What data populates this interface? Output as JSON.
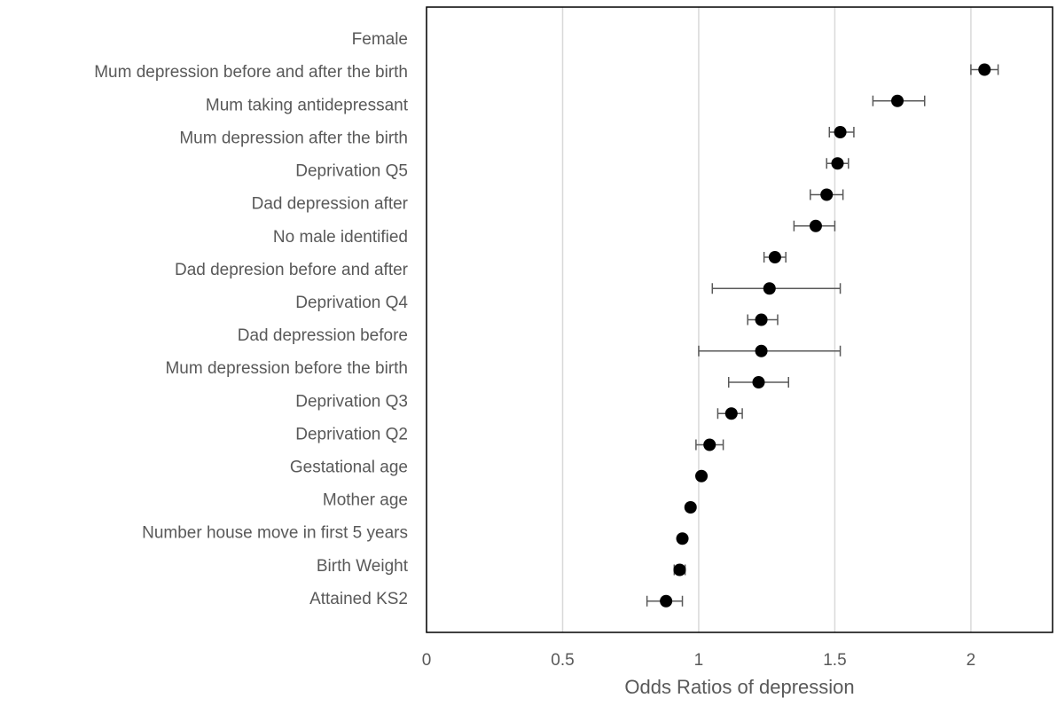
{
  "chart_data": {
    "type": "forest",
    "x_label": "Odds Ratios of depression",
    "categories": [
      "Female",
      "Mum depression before and after the birth",
      "Mum taking antidepressant",
      "Mum depression after the birth",
      "Deprivation Q5",
      "Dad depression after",
      "No male identified",
      "Dad depresion before and after",
      "Deprivation Q4",
      "Dad depression before",
      "Mum depression before the birth",
      "Deprivation Q3",
      "Deprivation Q2",
      "Gestational age",
      "Mother age",
      "Number house move in first 5 years",
      "Birth Weight",
      "Attained KS2"
    ],
    "values": [
      2.05,
      1.73,
      1.52,
      1.51,
      1.47,
      1.43,
      1.28,
      1.26,
      1.23,
      1.23,
      1.22,
      1.12,
      1.04,
      1.01,
      0.97,
      0.94,
      0.93,
      0.88
    ],
    "ci_low": [
      2.0,
      1.64,
      1.48,
      1.47,
      1.41,
      1.35,
      1.24,
      1.05,
      1.18,
      1.0,
      1.11,
      1.07,
      0.99,
      null,
      null,
      null,
      0.91,
      0.81
    ],
    "ci_high": [
      2.1,
      1.83,
      1.57,
      1.55,
      1.53,
      1.5,
      1.32,
      1.52,
      1.29,
      1.52,
      1.33,
      1.16,
      1.09,
      null,
      null,
      null,
      0.95,
      0.94
    ],
    "color": "#000000",
    "xlim": [
      0,
      2.3
    ],
    "xticks": [
      0,
      0.5,
      1,
      1.5,
      2
    ],
    "grid": true
  }
}
